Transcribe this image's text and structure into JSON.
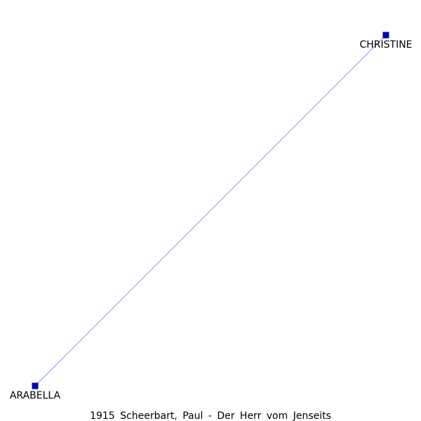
{
  "caption": "1915 Scheerbart, Paul - Der Herr vom Jenseits",
  "colors": {
    "background": "#ffffff",
    "node_fill": "#0000cc",
    "node_stroke": "#000066",
    "edge": "#6f93ee",
    "label": "#000000"
  },
  "nodes": [
    {
      "id": "christine",
      "label": "CHRISTINE"
    },
    {
      "id": "arabella",
      "label": "ARABELLA"
    }
  ],
  "edges": [
    {
      "from": "christine",
      "to": "arabella"
    }
  ]
}
